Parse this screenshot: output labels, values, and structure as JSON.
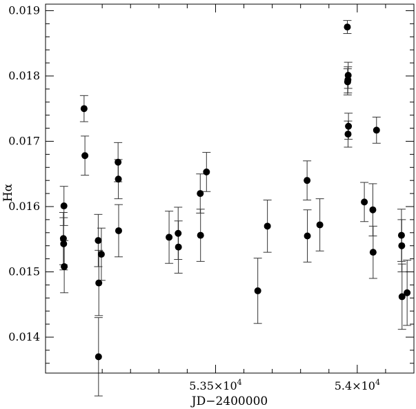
{
  "chart_data": {
    "type": "scatter",
    "title": "",
    "xlabel": "JD−2400000",
    "ylabel": "Hα",
    "xlim": [
      52900,
      54200
    ],
    "ylim": [
      0.01345,
      0.0191
    ],
    "xticks": [
      {
        "value": 53500,
        "mantissa": "5.35",
        "exponent": "4"
      },
      {
        "value": 54000,
        "mantissa": "5.4",
        "exponent": "4"
      }
    ],
    "yticks": [
      "0.014",
      "0.015",
      "0.016",
      "0.017",
      "0.018",
      "0.019"
    ],
    "grid": false,
    "series": [
      {
        "points": [
          {
            "x": 52963,
            "y": 0.01551,
            "err": 0.0004
          },
          {
            "x": 52964,
            "y": 0.01543,
            "err": 0.0004
          },
          {
            "x": 52965,
            "y": 0.01601,
            "err": 0.0003
          },
          {
            "x": 52966,
            "y": 0.01508,
            "err": 0.0004
          },
          {
            "x": 53036,
            "y": 0.0175,
            "err": 0.0002
          },
          {
            "x": 53039,
            "y": 0.01678,
            "err": 0.0003
          },
          {
            "x": 53086,
            "y": 0.01548,
            "err": 0.0004
          },
          {
            "x": 53087,
            "y": 0.0137,
            "err": 0.0006
          },
          {
            "x": 53088,
            "y": 0.01483,
            "err": 0.0005
          },
          {
            "x": 53097,
            "y": 0.01527,
            "err": 0.0004
          },
          {
            "x": 53156,
            "y": 0.01668,
            "err": 0.0003
          },
          {
            "x": 53157,
            "y": 0.01642,
            "err": 0.0003
          },
          {
            "x": 53158,
            "y": 0.01563,
            "err": 0.0004
          },
          {
            "x": 53336,
            "y": 0.01553,
            "err": 0.0004
          },
          {
            "x": 53368,
            "y": 0.01559,
            "err": 0.0004
          },
          {
            "x": 53369,
            "y": 0.01538,
            "err": 0.0004
          },
          {
            "x": 53446,
            "y": 0.0162,
            "err": 0.0003
          },
          {
            "x": 53447,
            "y": 0.01556,
            "err": 0.0004
          },
          {
            "x": 53468,
            "y": 0.01653,
            "err": 0.0003
          },
          {
            "x": 53649,
            "y": 0.01471,
            "err": 0.0005
          },
          {
            "x": 53683,
            "y": 0.0157,
            "err": 0.0004
          },
          {
            "x": 53823,
            "y": 0.0164,
            "err": 0.0003
          },
          {
            "x": 53824,
            "y": 0.01555,
            "err": 0.0004
          },
          {
            "x": 53868,
            "y": 0.01572,
            "err": 0.0004
          },
          {
            "x": 53965,
            "y": 0.01875,
            "err": 0.0001
          },
          {
            "x": 53966,
            "y": 0.01791,
            "err": 0.0002
          },
          {
            "x": 53967,
            "y": 0.01794,
            "err": 0.0002
          },
          {
            "x": 53968,
            "y": 0.01801,
            "err": 0.0002
          },
          {
            "x": 53967.5,
            "y": 0.01711,
            "err": 0.0002
          },
          {
            "x": 53969,
            "y": 0.01723,
            "err": 0.0002
          },
          {
            "x": 54025,
            "y": 0.01607,
            "err": 0.0003
          },
          {
            "x": 54055,
            "y": 0.01595,
            "err": 0.0004
          },
          {
            "x": 54056,
            "y": 0.0153,
            "err": 0.0004
          },
          {
            "x": 54068,
            "y": 0.01717,
            "err": 0.0002
          },
          {
            "x": 54156,
            "y": 0.01556,
            "err": 0.0004
          },
          {
            "x": 54157,
            "y": 0.0154,
            "err": 0.0004
          },
          {
            "x": 54158,
            "y": 0.01462,
            "err": 0.0005
          },
          {
            "x": 54176,
            "y": 0.01468,
            "err": 0.0005
          }
        ]
      }
    ]
  }
}
